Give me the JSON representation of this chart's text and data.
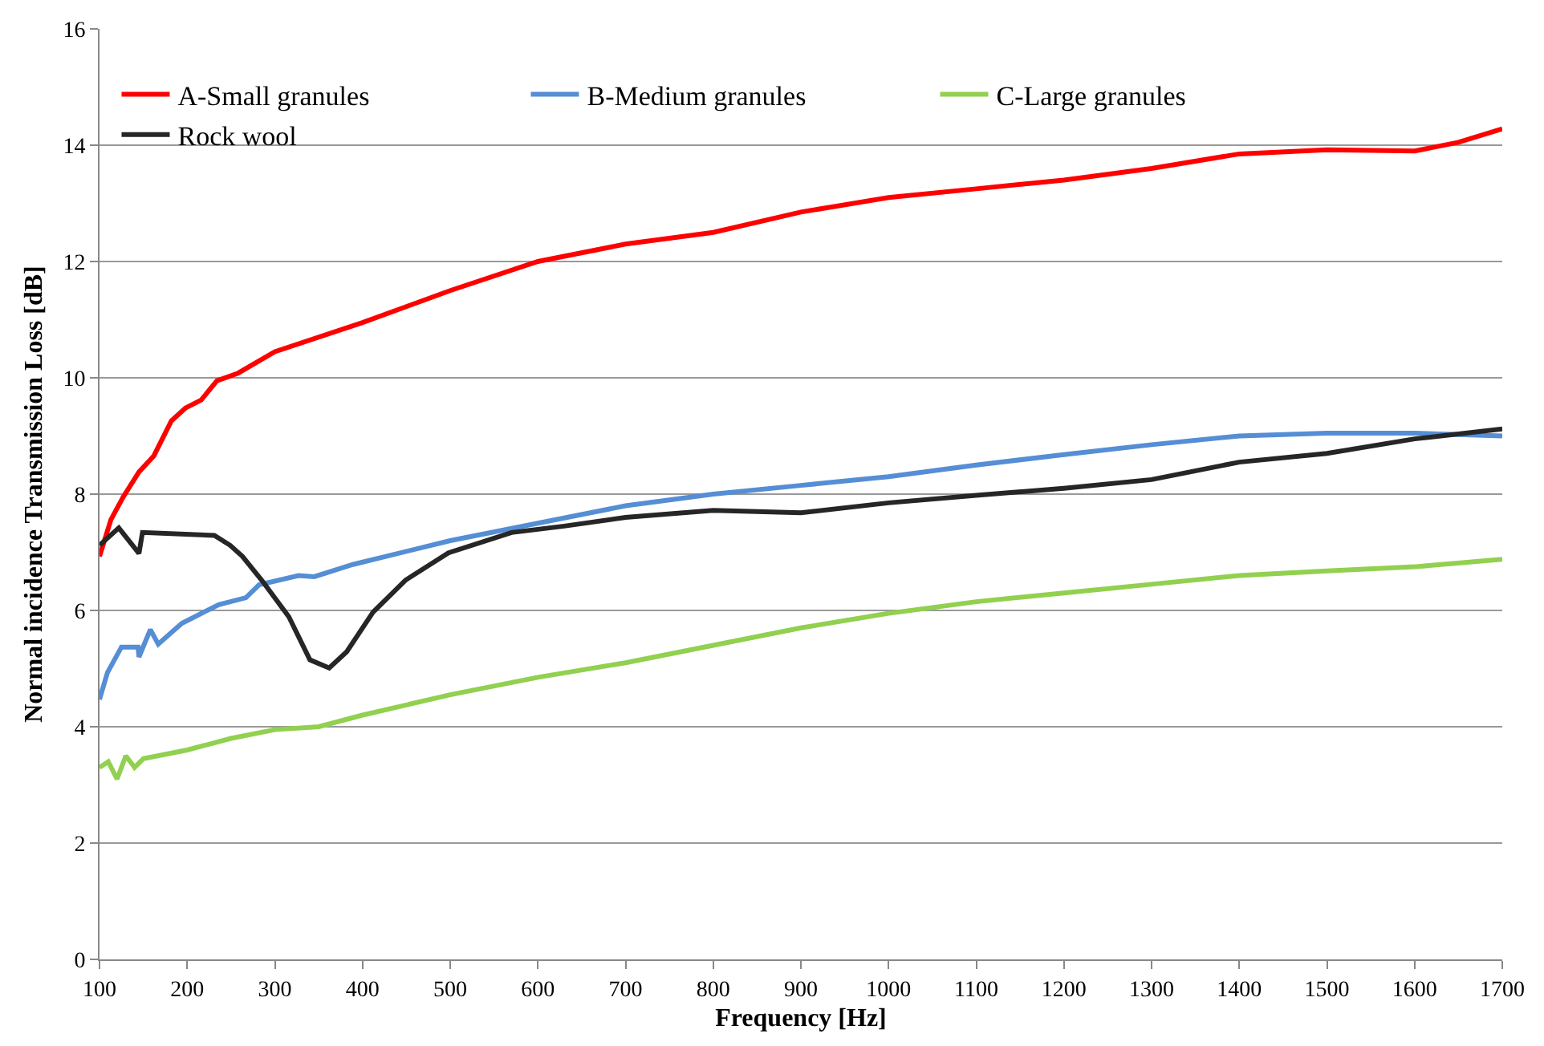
{
  "chart_data": {
    "type": "line",
    "xlabel": "Frequency [Hz]",
    "ylabel": "Normal incidence Transmission Loss [dB]",
    "xlim": [
      100,
      1700
    ],
    "xticks": [
      100,
      200,
      300,
      400,
      500,
      600,
      700,
      800,
      900,
      1000,
      1100,
      1200,
      1300,
      1400,
      1500,
      1600,
      1700
    ],
    "ylim": [
      0,
      16
    ],
    "yticks": [
      0,
      2,
      4,
      6,
      8,
      10,
      12,
      14,
      16
    ],
    "grid": "y",
    "legend": "top left",
    "marker": "none",
    "line_style": "solid",
    "series": [
      {
        "name": "A-Small granules",
        "color": "#ff0000",
        "x": [
          100,
          113,
          127,
          145,
          162,
          182,
          198,
          216,
          234,
          258,
          300,
          400,
          500,
          600,
          700,
          800,
          900,
          1000,
          1100,
          1200,
          1300,
          1400,
          1500,
          1600,
          1650,
          1700
        ],
        "values": [
          6.93,
          7.56,
          7.95,
          8.38,
          8.66,
          9.26,
          9.48,
          9.62,
          9.95,
          10.08,
          10.45,
          10.95,
          11.5,
          12.0,
          12.3,
          12.5,
          12.85,
          13.1,
          13.25,
          13.4,
          13.6,
          13.85,
          13.92,
          13.9,
          14.05,
          14.28
        ]
      },
      {
        "name": "B-Medium granules",
        "color": "#558ed5",
        "x": [
          100,
          109,
          125,
          144,
          145,
          158,
          167,
          182,
          194,
          236,
          267,
          282,
          327,
          345,
          389,
          500,
          600,
          700,
          800,
          900,
          1000,
          1100,
          1200,
          1300,
          1400,
          1500,
          1600,
          1700
        ],
        "values": [
          4.47,
          4.93,
          5.37,
          5.37,
          5.2,
          5.67,
          5.42,
          5.62,
          5.78,
          6.1,
          6.22,
          6.44,
          6.6,
          6.58,
          6.79,
          7.2,
          7.5,
          7.8,
          8.0,
          8.15,
          8.3,
          8.5,
          8.68,
          8.85,
          9.0,
          9.05,
          9.05,
          9.0
        ]
      },
      {
        "name": "C-Large granules",
        "color": "#92d050",
        "x": [
          100,
          110,
          120,
          130,
          140,
          150,
          200,
          250,
          300,
          350,
          400,
          500,
          600,
          700,
          800,
          900,
          1000,
          1100,
          1200,
          1300,
          1400,
          1500,
          1600,
          1700
        ],
        "values": [
          3.3,
          3.4,
          3.1,
          3.5,
          3.3,
          3.45,
          3.6,
          3.8,
          3.95,
          4.0,
          4.2,
          4.55,
          4.85,
          5.1,
          5.4,
          5.7,
          5.95,
          6.15,
          6.3,
          6.45,
          6.6,
          6.68,
          6.75,
          6.88
        ]
      },
      {
        "name": "Rock wool",
        "color": "#262626",
        "x": [
          100,
          122,
          145,
          149,
          231,
          249,
          263,
          285,
          316,
          340,
          362,
          382,
          412,
          449,
          498,
          570,
          630,
          700,
          800,
          900,
          1000,
          1100,
          1200,
          1300,
          1400,
          1500,
          1600,
          1700
        ],
        "values": [
          7.12,
          7.42,
          6.98,
          7.34,
          7.29,
          7.12,
          6.93,
          6.52,
          5.89,
          5.15,
          5.01,
          5.29,
          5.97,
          6.52,
          6.99,
          7.34,
          7.45,
          7.6,
          7.72,
          7.68,
          7.85,
          7.98,
          8.1,
          8.25,
          8.55,
          8.7,
          8.95,
          9.12
        ]
      }
    ]
  }
}
